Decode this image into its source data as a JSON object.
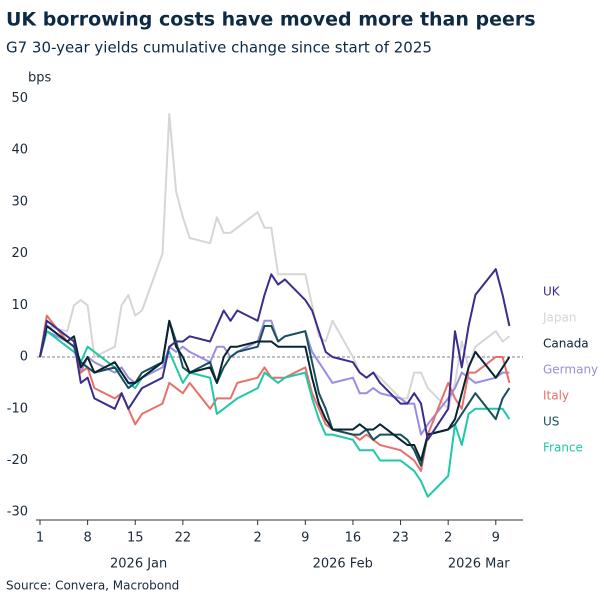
{
  "chart_data": {
    "type": "line",
    "title": "UK borrowing costs have moved more than peers",
    "subtitle": "G7 30-year yields cumulative change since start of 2025",
    "y_unit": "bps",
    "source": "Source: Convera, Macrobond",
    "x": [
      "2026-01-01",
      "2026-01-02",
      "2026-01-05",
      "2026-01-06",
      "2026-01-07",
      "2026-01-08",
      "2026-01-09",
      "2026-01-12",
      "2026-01-13",
      "2026-01-14",
      "2026-01-15",
      "2026-01-16",
      "2026-01-19",
      "2026-01-20",
      "2026-01-21",
      "2026-01-22",
      "2026-01-23",
      "2026-01-26",
      "2026-01-27",
      "2026-01-28",
      "2026-01-29",
      "2026-01-30",
      "2026-02-02",
      "2026-02-03",
      "2026-02-04",
      "2026-02-05",
      "2026-02-06",
      "2026-02-09",
      "2026-02-10",
      "2026-02-11",
      "2026-02-12",
      "2026-02-13",
      "2026-02-16",
      "2026-02-17",
      "2026-02-18",
      "2026-02-19",
      "2026-02-20",
      "2026-02-23",
      "2026-02-24",
      "2026-02-25",
      "2026-02-26",
      "2026-02-27",
      "2026-03-02",
      "2026-03-03",
      "2026-03-04",
      "2026-03-05",
      "2026-03-06",
      "2026-03-09",
      "2026-03-10",
      "2026-03-11"
    ],
    "xlim": [
      "2026-01-01",
      "2026-03-13"
    ],
    "xticks": [
      {
        "value": "2026-01-01",
        "label": "1"
      },
      {
        "value": "2026-01-08",
        "label": "8"
      },
      {
        "value": "2026-01-15",
        "label": "15"
      },
      {
        "value": "2026-01-22",
        "label": "22"
      },
      {
        "value": "2026-02-02",
        "label": "2"
      },
      {
        "value": "2026-02-09",
        "label": "9"
      },
      {
        "value": "2026-02-16",
        "label": "16"
      },
      {
        "value": "2026-02-23",
        "label": "23"
      },
      {
        "value": "2026-03-02",
        "label": "2"
      },
      {
        "value": "2026-03-09",
        "label": "9"
      }
    ],
    "month_labels": [
      "2026 Jan",
      "2026 Feb",
      "2026 Mar"
    ],
    "ylim": [
      -31.5,
      52
    ],
    "yticks": [
      -30,
      -20,
      -10,
      0,
      10,
      20,
      30,
      40,
      50
    ],
    "zero_line": true,
    "series": [
      {
        "name": "UK",
        "color": "#3b2d8c",
        "values": [
          0,
          7,
          4,
          3,
          -5,
          -4,
          -8,
          -10,
          -7,
          -10,
          -8,
          -6,
          -4,
          2,
          3,
          3,
          4,
          3,
          6,
          9,
          7,
          9,
          7,
          12,
          16,
          14,
          15,
          11,
          9,
          5,
          1,
          0,
          -1,
          -3,
          -4,
          -3,
          -5,
          -9,
          -9,
          -7,
          -9,
          -16,
          -10,
          5,
          -2,
          6,
          12,
          17,
          12,
          6
        ]
      },
      {
        "name": "Japan",
        "color": "#d6d6d6",
        "values": [
          0,
          6,
          5,
          10,
          11,
          10,
          0,
          2,
          10,
          12,
          8,
          9,
          20,
          47,
          32,
          27,
          23,
          22,
          27,
          24,
          24,
          25,
          28,
          25,
          25,
          16,
          16,
          16,
          10,
          4,
          3,
          7,
          0,
          -3,
          -4,
          -3,
          -4,
          -8,
          -8,
          -3,
          -3,
          -6,
          -10,
          -5,
          3,
          -2,
          2,
          5,
          3,
          4
        ]
      },
      {
        "name": "Canada",
        "color": "#0b2233",
        "values": [
          0,
          6,
          3,
          4,
          -2,
          0,
          -3,
          -1,
          -3,
          -5,
          -5,
          -4,
          -1,
          7,
          2,
          0,
          -3,
          -2,
          -5,
          0,
          2,
          2,
          3,
          3,
          3,
          2,
          2,
          2,
          -4,
          -9,
          -12,
          -14,
          -14,
          -13,
          -14,
          -14,
          -13,
          -16,
          -17,
          -17,
          -20,
          -15,
          -14,
          -12,
          -7,
          -2,
          1,
          -4,
          -2,
          0
        ]
      },
      {
        "name": "Germany",
        "color": "#9a8ee0",
        "values": [
          0,
          5,
          3,
          2,
          -3,
          0,
          -1,
          -3,
          -2,
          -4,
          -5,
          -4,
          -2,
          2,
          1,
          2,
          1,
          -1,
          2,
          2,
          0,
          1,
          3,
          7,
          7,
          3,
          4,
          5,
          1,
          -1,
          -3,
          -5,
          -4,
          -7,
          -7,
          -6,
          -7,
          -8,
          -9,
          -9,
          -15,
          -13,
          -8,
          -6,
          -3,
          -4,
          -5,
          -4,
          -3,
          -3
        ]
      },
      {
        "name": "Italy",
        "color": "#e8706a",
        "values": [
          0,
          8,
          3,
          2,
          -3,
          -2,
          -6,
          -8,
          -7,
          -10,
          -13,
          -11,
          -9,
          -5,
          -6,
          -7,
          -5,
          -10,
          -8,
          -8,
          -8,
          -5,
          -4,
          -2,
          -4,
          -4,
          -4,
          -2,
          -7,
          -10,
          -13,
          -14,
          -15,
          -16,
          -15,
          -16,
          -17,
          -18,
          -19,
          -20,
          -22,
          -15,
          -5,
          -8,
          -10,
          -3,
          -3,
          0,
          0,
          -5
        ]
      },
      {
        "name": "US",
        "color": "#17505a",
        "values": [
          0,
          6,
          3,
          2,
          -1,
          -2,
          -3,
          -2,
          -4,
          -6,
          -5,
          -3,
          -1,
          7,
          3,
          -2,
          -3,
          -1,
          -5,
          -2,
          0,
          1,
          2,
          6,
          6,
          3,
          4,
          5,
          -1,
          -7,
          -10,
          -14,
          -15,
          -15,
          -14,
          -16,
          -15,
          -15,
          -16,
          -18,
          -21,
          -15,
          -14,
          -13,
          -11,
          -9,
          -7,
          -12,
          -8,
          -6
        ]
      },
      {
        "name": "France",
        "color": "#1fc8a6",
        "values": [
          0,
          5,
          2,
          1,
          -1,
          2,
          1,
          -2,
          -3,
          -5,
          -6,
          -4,
          -1,
          1,
          -2,
          -5,
          -3,
          -4,
          -11,
          -10,
          -9,
          -8,
          -6,
          -3,
          -4,
          -5,
          -4,
          -3,
          -8,
          -12,
          -15,
          -15,
          -16,
          -18,
          -18,
          -18,
          -20,
          -20,
          -21,
          -22,
          -24,
          -27,
          -23,
          -13,
          -17,
          -11,
          -10,
          -10,
          -10,
          -12
        ]
      }
    ]
  }
}
